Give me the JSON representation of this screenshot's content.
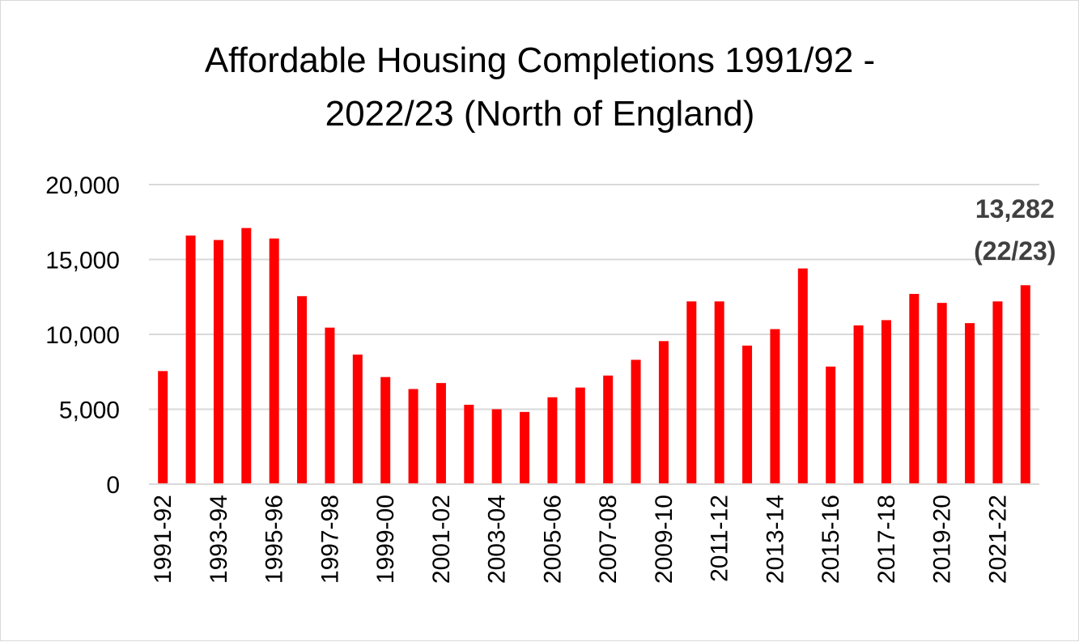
{
  "colors": {
    "bar": "#ff0000",
    "grid": "#d9d9d9",
    "text": "#000000",
    "callout": "#404040"
  },
  "chart_data": {
    "type": "bar",
    "title_lines": [
      "Affordable Housing Completions 1991/92 -",
      "2022/23 (North of England)"
    ],
    "xlabel": "",
    "ylabel": "",
    "ylim": [
      0,
      20000
    ],
    "yticks": [
      0,
      5000,
      10000,
      15000,
      20000
    ],
    "ytick_labels": [
      "0",
      "5,000",
      "10,000",
      "15,000",
      "20,000"
    ],
    "grid": "horizontal",
    "legend": "none",
    "categories": [
      "1991-92",
      "1992-93",
      "1993-94",
      "1994-95",
      "1995-96",
      "1996-97",
      "1997-98",
      "1998-99",
      "1999-00",
      "2000-01",
      "2001-02",
      "2002-03",
      "2003-04",
      "2004-05",
      "2005-06",
      "2006-07",
      "2007-08",
      "2008-09",
      "2009-10",
      "2010-11",
      "2011-12",
      "2012-13",
      "2013-14",
      "2014-15",
      "2015-16",
      "2016-17",
      "2017-18",
      "2018-19",
      "2019-20",
      "2020-21",
      "2021-22",
      "2022-23"
    ],
    "x_tick_labels": [
      "1991-92",
      "",
      "1993-94",
      "",
      "1995-96",
      "",
      "1997-98",
      "",
      "1999-00",
      "",
      "2001-02",
      "",
      "2003-04",
      "",
      "2005-06",
      "",
      "2007-08",
      "",
      "2009-10",
      "",
      "2011-12",
      "",
      "2013-14",
      "",
      "2015-16",
      "",
      "2017-18",
      "",
      "2019-20",
      "",
      "2021-22",
      ""
    ],
    "values": [
      7550,
      16600,
      16300,
      17100,
      16400,
      12550,
      10450,
      8650,
      7150,
      6350,
      6750,
      5300,
      5000,
      4820,
      5800,
      6450,
      7250,
      8300,
      9550,
      12200,
      12200,
      9250,
      10350,
      14400,
      7850,
      10600,
      10950,
      12700,
      12100,
      10750,
      12200,
      13282
    ],
    "annotation": {
      "lines": [
        "13,282",
        "(22/23)"
      ],
      "category": "2022-23"
    }
  }
}
